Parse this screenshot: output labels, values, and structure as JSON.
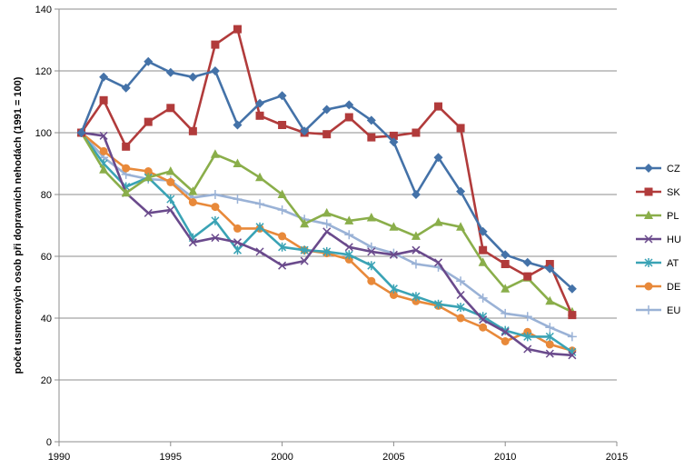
{
  "chart_data": {
    "type": "line",
    "title": "",
    "xlabel": "",
    "ylabel": "počet usmrcených osob při dopravních nehodách (1991 = 100)",
    "xlim": [
      1990,
      2015
    ],
    "ylim": [
      0,
      140
    ],
    "xticks": [
      1990,
      1995,
      2000,
      2005,
      2010,
      2015
    ],
    "yticks": [
      0,
      20,
      40,
      60,
      80,
      100,
      120,
      140
    ],
    "grid": "horizontal",
    "legend_position": "right",
    "x": [
      1991,
      1992,
      1993,
      1994,
      1995,
      1996,
      1997,
      1998,
      1999,
      2000,
      2001,
      2002,
      2003,
      2004,
      2005,
      2006,
      2007,
      2008,
      2009,
      2010,
      2011,
      2012,
      2013
    ],
    "series": [
      {
        "name": "CZ",
        "color": "#4472a8",
        "marker": "diamond",
        "values": [
          100,
          118,
          114.5,
          123,
          119.5,
          118,
          120,
          102.5,
          109.5,
          112,
          100.5,
          107.5,
          109,
          104,
          97,
          80,
          92,
          81,
          68,
          60.5,
          58,
          56,
          49.5
        ]
      },
      {
        "name": "SK",
        "color": "#b13b3b",
        "marker": "square",
        "values": [
          100,
          110.5,
          95.5,
          103.5,
          108,
          100.5,
          128.5,
          133.5,
          105.5,
          102.5,
          100,
          99.5,
          105,
          98.5,
          99,
          100,
          108.5,
          101.5,
          62,
          57.5,
          53.5,
          57.5,
          41
        ]
      },
      {
        "name": "PL",
        "color": "#8aae4a",
        "marker": "triangle",
        "values": [
          100,
          88,
          80.5,
          85.5,
          87.5,
          81,
          93,
          90,
          85.5,
          80,
          70.5,
          74,
          71.5,
          72.5,
          69.5,
          66.5,
          71,
          69.5,
          58,
          49.5,
          53,
          45.5,
          42
        ]
      },
      {
        "name": "HU",
        "color": "#6a4a8c",
        "marker": "x",
        "values": [
          100,
          99,
          80.5,
          74,
          75,
          64.5,
          66,
          64.5,
          61.5,
          57,
          58.5,
          68,
          63,
          61.5,
          60.5,
          62,
          58,
          47.5,
          39.5,
          35.5,
          30,
          28.5,
          28
        ]
      },
      {
        "name": "AT",
        "color": "#3aa3b5",
        "marker": "star",
        "values": [
          100,
          90,
          82.5,
          85.5,
          78.5,
          66,
          71.5,
          62,
          69.5,
          63,
          62,
          61.5,
          60.5,
          57,
          49.5,
          47,
          44.5,
          43.5,
          40.5,
          36,
          34,
          34,
          29
        ]
      },
      {
        "name": "DE",
        "color": "#e8893a",
        "marker": "circle",
        "values": [
          100,
          94,
          88.5,
          87.5,
          84,
          77.5,
          76,
          69,
          69,
          66.5,
          62,
          61,
          59,
          52,
          47.5,
          45.5,
          44,
          40,
          37,
          32.5,
          35.5,
          31.5,
          29.5
        ]
      },
      {
        "name": "EU",
        "color": "#9ab2d6",
        "marker": "plus",
        "values": [
          100,
          92,
          86.5,
          85,
          84.5,
          79,
          80,
          78.5,
          77,
          75,
          72,
          70.5,
          67,
          63,
          61,
          57.5,
          56.5,
          52,
          46.5,
          41.5,
          40.5,
          37,
          34
        ]
      }
    ]
  }
}
